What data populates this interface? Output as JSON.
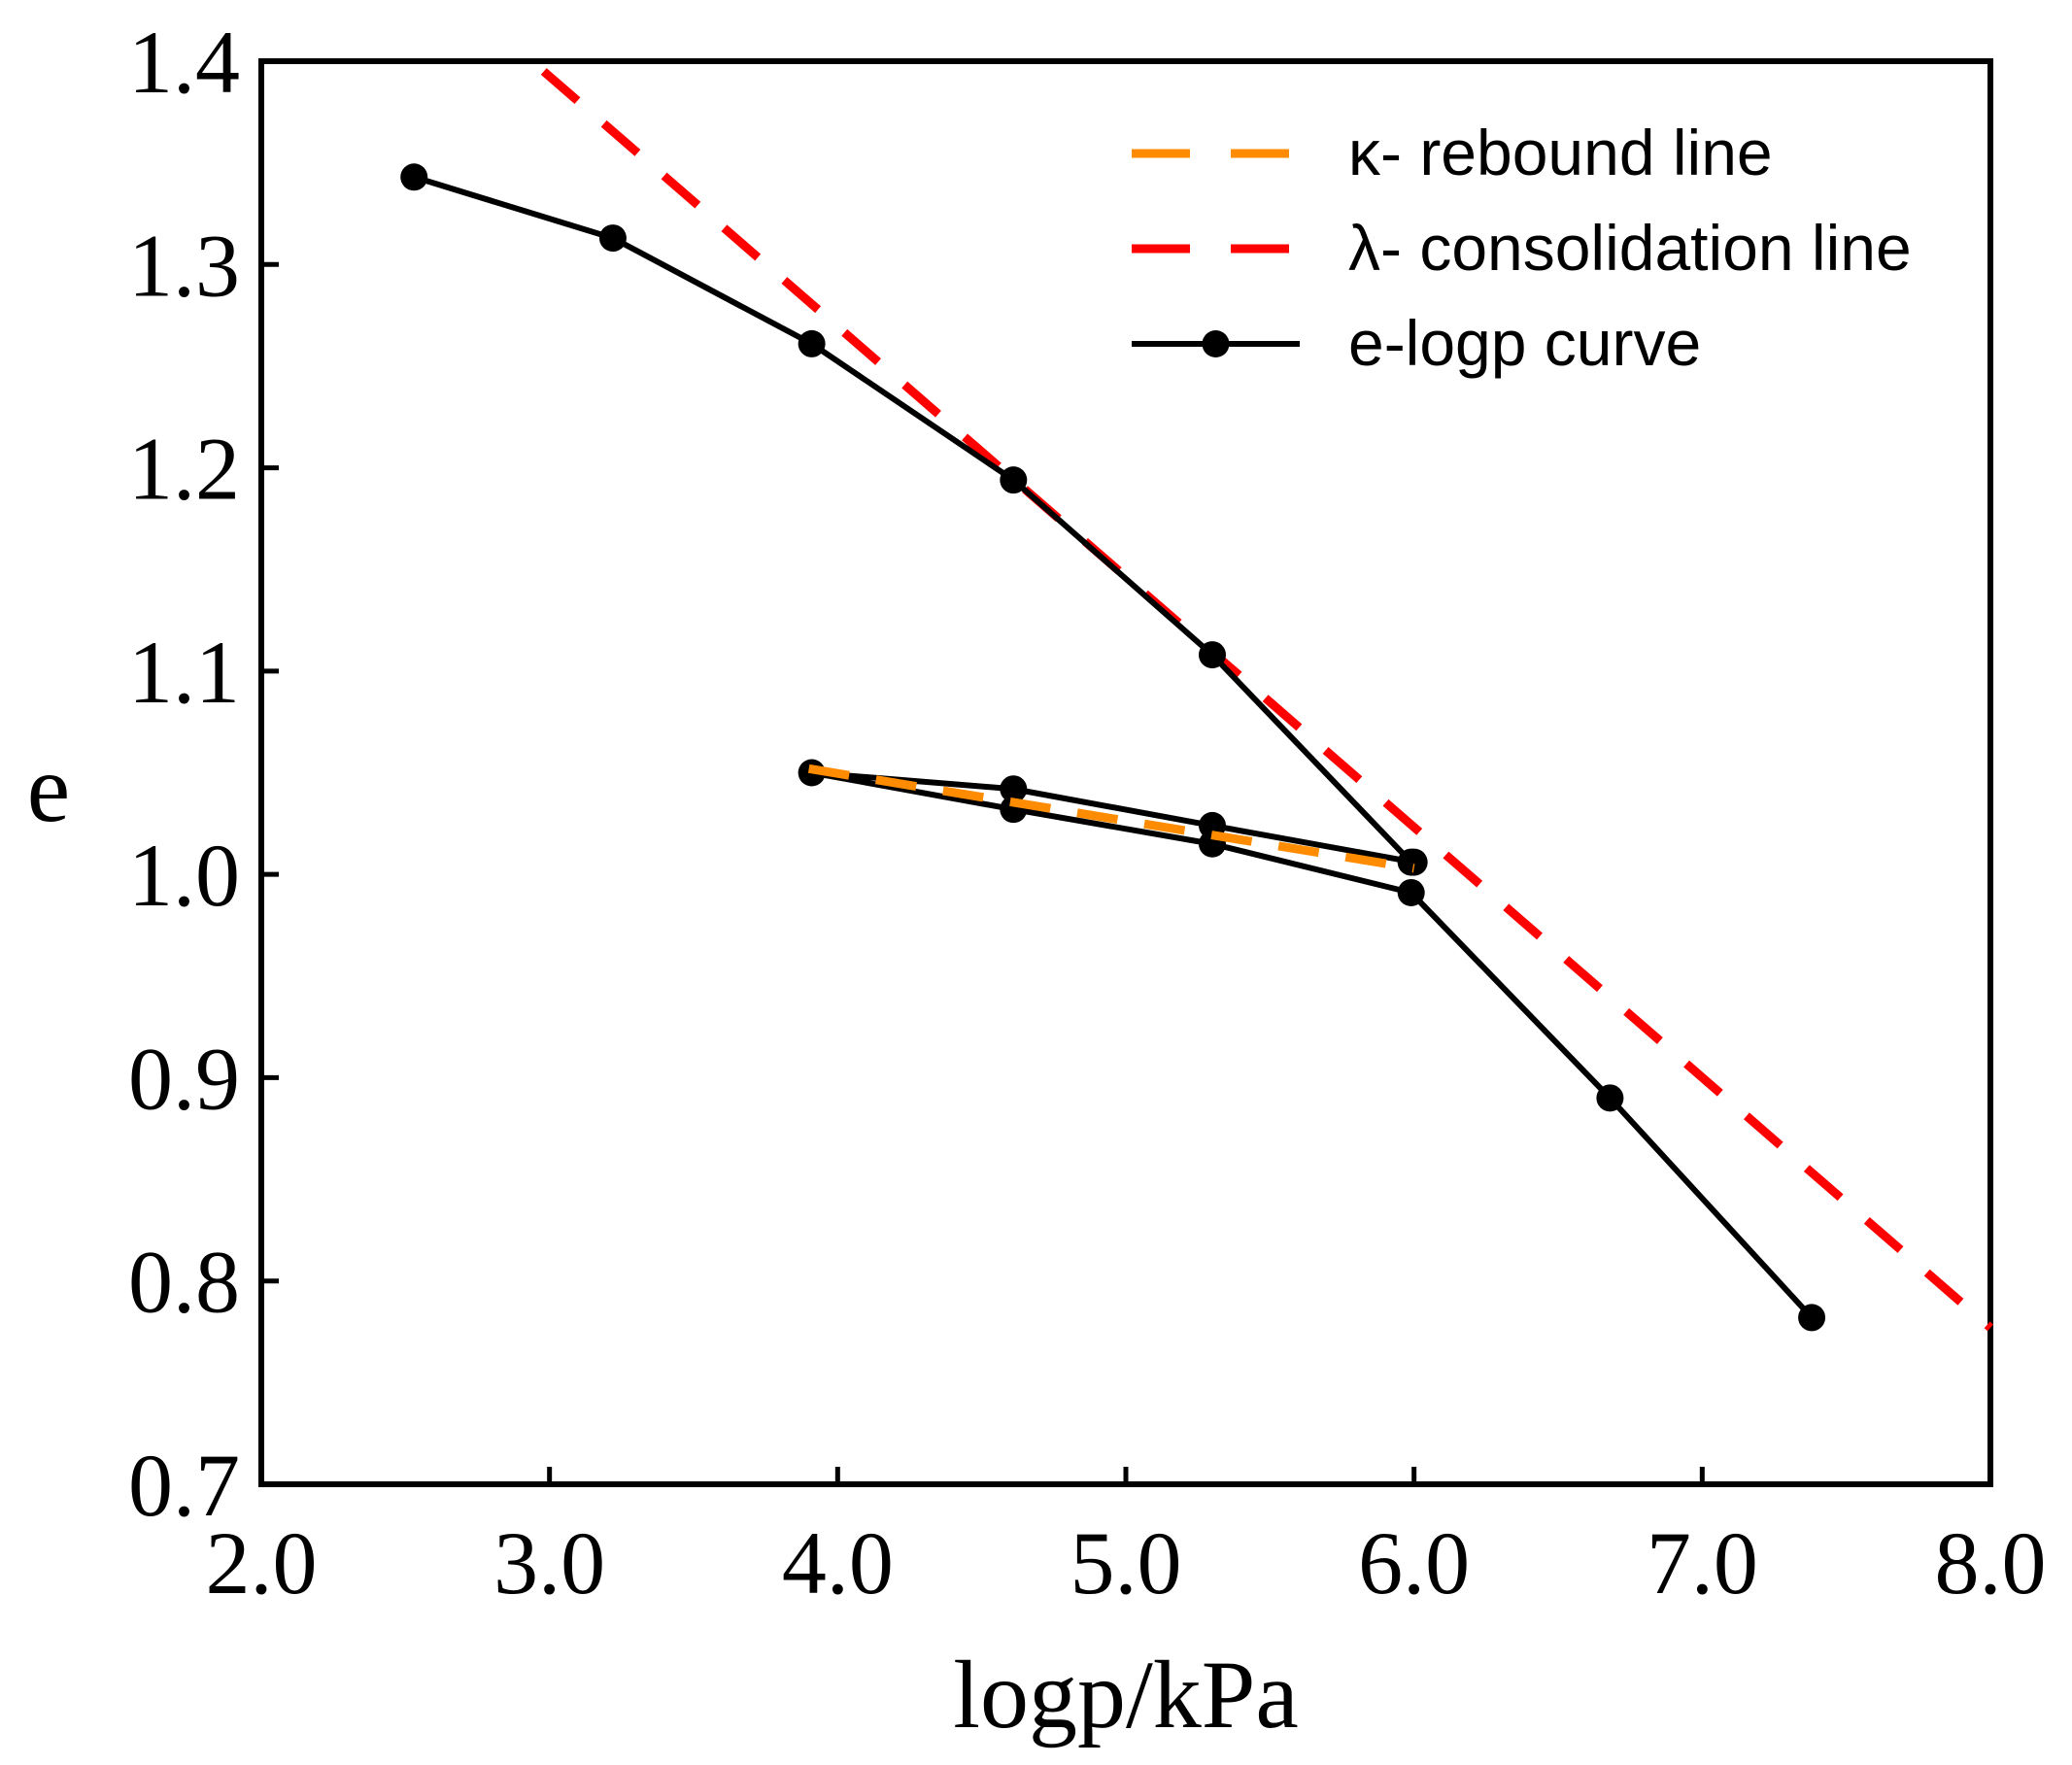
{
  "chart_data": {
    "type": "line",
    "xlabel": "logp/kPa",
    "ylabel": "e",
    "xlim": [
      2.0,
      8.0
    ],
    "ylim": [
      0.7,
      1.4
    ],
    "x_ticks": [
      "2.0",
      "3.0",
      "4.0",
      "5.0",
      "6.0",
      "7.0",
      "8.0"
    ],
    "y_ticks": [
      "0.7",
      "0.8",
      "0.9",
      "1.0",
      "1.1",
      "1.2",
      "1.3",
      "1.4"
    ],
    "grid": false,
    "legend_position": "top-right",
    "series": [
      {
        "name": "κ- rebound line",
        "style": "dashed",
        "color": "#ff8c00",
        "x": [
          3.9,
          6.0
        ],
        "y": [
          1.052,
          1.003
        ]
      },
      {
        "name": "λ- consolidation line",
        "style": "dashed",
        "color": "#ff0000",
        "x": [
          2.98,
          8.0
        ],
        "y": [
          1.395,
          0.777
        ]
      },
      {
        "name": "e-logp curve",
        "style": "solid-with-markers",
        "color": "#000000",
        "x": [
          2.53,
          3.22,
          3.91,
          4.61,
          5.3,
          5.99,
          6.0,
          5.3,
          4.61,
          3.91,
          4.61,
          5.3,
          5.99,
          6.68,
          7.38
        ],
        "y": [
          1.343,
          1.313,
          1.261,
          1.194,
          1.108,
          1.006,
          1.006,
          1.024,
          1.042,
          1.05,
          1.032,
          1.015,
          0.991,
          0.89,
          0.782
        ]
      }
    ]
  }
}
